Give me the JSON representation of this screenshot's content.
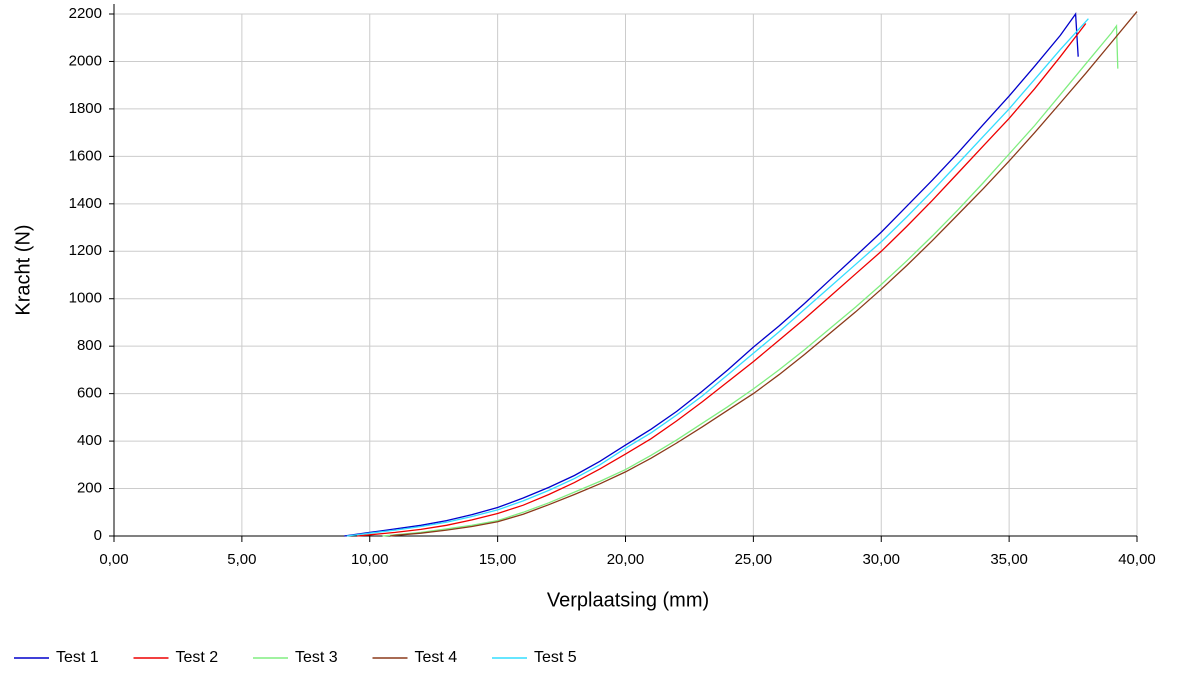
{
  "chart_data": {
    "type": "line",
    "x_label": "Verplaatsing (mm)",
    "y_label": "Kracht (N)",
    "xlim": [
      0,
      40
    ],
    "ylim": [
      0,
      2200
    ],
    "xticks": [
      {
        "value": 0,
        "label": "0,00"
      },
      {
        "value": 5,
        "label": "5,00"
      },
      {
        "value": 10,
        "label": "10,00"
      },
      {
        "value": 15,
        "label": "15,00"
      },
      {
        "value": 20,
        "label": "20,00"
      },
      {
        "value": 25,
        "label": "25,00"
      },
      {
        "value": 30,
        "label": "30,00"
      },
      {
        "value": 35,
        "label": "35,00"
      },
      {
        "value": 40,
        "label": "40,00"
      }
    ],
    "yticks": [
      0,
      200,
      400,
      600,
      800,
      1000,
      1200,
      1400,
      1600,
      1800,
      2000,
      2200
    ],
    "grid": true,
    "legend": "bottom",
    "series": [
      {
        "name": "Test 1",
        "color": "#0000cc",
        "x": [
          9.0,
          10,
          11,
          12,
          13,
          14,
          15,
          16,
          17,
          18,
          19,
          20,
          21,
          22,
          23,
          24,
          25,
          26,
          27,
          28,
          29,
          30,
          31,
          32,
          33,
          34,
          35,
          36,
          37,
          37.6,
          37.7
        ],
        "values": [
          0,
          15,
          30,
          45,
          65,
          90,
          120,
          160,
          205,
          255,
          315,
          383,
          450,
          525,
          610,
          700,
          796,
          885,
          980,
          1080,
          1180,
          1281,
          1390,
          1500,
          1615,
          1735,
          1854,
          1980,
          2110,
          2200,
          2020
        ]
      },
      {
        "name": "Test 2",
        "color": "#ee0000",
        "x": [
          9.5,
          10,
          11,
          12,
          13,
          14,
          15,
          16,
          17,
          18,
          19,
          20,
          21,
          22,
          23,
          24,
          25,
          26,
          27,
          28,
          29,
          30,
          31,
          32,
          33,
          34,
          35,
          36,
          37,
          38.0
        ],
        "values": [
          0,
          5,
          15,
          28,
          45,
          68,
          95,
          130,
          175,
          225,
          283,
          345,
          410,
          485,
          565,
          650,
          735,
          825,
          915,
          1010,
          1105,
          1200,
          1305,
          1415,
          1530,
          1645,
          1760,
          1885,
          2020,
          2160
        ]
      },
      {
        "name": "Test 3",
        "color": "#80ee80",
        "x": [
          10.5,
          11,
          12,
          13,
          14,
          15,
          16,
          17,
          18,
          19,
          20,
          21,
          22,
          23,
          24,
          25,
          26,
          27,
          28,
          29,
          30,
          31,
          32,
          33,
          34,
          35,
          36,
          37,
          38,
          39,
          39.2,
          39.25
        ],
        "values": [
          0,
          5,
          15,
          30,
          45,
          65,
          100,
          140,
          185,
          230,
          280,
          340,
          405,
          475,
          545,
          620,
          700,
          785,
          875,
          965,
          1060,
          1160,
          1265,
          1375,
          1490,
          1610,
          1730,
          1860,
          1990,
          2120,
          2150,
          1970
        ]
      },
      {
        "name": "Test 4",
        "color": "#8b3a1a",
        "x": [
          10.8,
          11,
          12,
          13,
          14,
          15,
          16,
          17,
          18,
          19,
          20,
          21,
          22,
          23,
          24,
          25,
          26,
          27,
          28,
          29,
          30,
          31,
          32,
          33,
          34,
          35,
          36,
          37,
          38,
          39,
          40
        ],
        "values": [
          0,
          3,
          12,
          25,
          40,
          60,
          92,
          132,
          175,
          220,
          270,
          328,
          392,
          460,
          530,
          600,
          680,
          765,
          855,
          945,
          1040,
          1140,
          1245,
          1355,
          1465,
          1580,
          1700,
          1825,
          1950,
          2080,
          2210
        ]
      },
      {
        "name": "Test 5",
        "color": "#33ddff",
        "x": [
          9.1,
          10,
          11,
          12,
          13,
          14,
          15,
          16,
          17,
          18,
          19,
          20,
          21,
          22,
          23,
          24,
          25,
          26,
          27,
          28,
          29,
          30,
          31,
          32,
          33,
          34,
          35,
          36,
          37,
          38.1
        ],
        "values": [
          0,
          12,
          25,
          40,
          58,
          82,
          110,
          148,
          192,
          242,
          300,
          370,
          435,
          510,
          590,
          680,
          770,
          860,
          955,
          1050,
          1145,
          1240,
          1345,
          1455,
          1570,
          1685,
          1800,
          1925,
          2050,
          2180
        ]
      }
    ]
  }
}
